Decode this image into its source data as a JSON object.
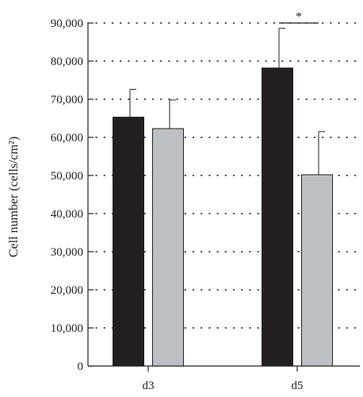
{
  "chart_data": {
    "type": "bar",
    "title": "",
    "xlabel": "",
    "ylabel": "Cell number (cells/cm²)",
    "ylim": [
      0,
      90000
    ],
    "yticks": [
      0,
      10000,
      20000,
      30000,
      40000,
      50000,
      60000,
      70000,
      80000,
      90000
    ],
    "ytick_labels": [
      "0",
      "10,000",
      "20,000",
      "30,000",
      "40,000",
      "50,000",
      "60,000",
      "70,000",
      "80,000",
      "90,000"
    ],
    "categories": [
      "d3",
      "d5"
    ],
    "series": [
      {
        "values": [
          65300,
          78200
        ],
        "errors": [
          7300,
          10400
        ],
        "color": "#231f20"
      },
      {
        "values": [
          62300,
          50200
        ],
        "errors": [
          7500,
          11300
        ],
        "color": "#bcc0c4"
      }
    ],
    "grid": true,
    "grid_style": "dotted-horizontal",
    "legend": "none",
    "annotations": [
      {
        "text": "*",
        "category": "d5",
        "type": "significance-bracket",
        "y": 90000
      }
    ]
  }
}
